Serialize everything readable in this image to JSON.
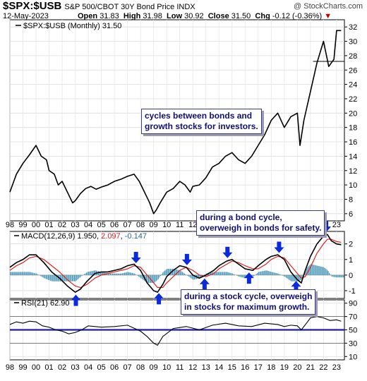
{
  "header": {
    "symbol": "$SPX:$USB",
    "description": "S&P 500/CBOT 30Y Bond Price INDX",
    "brand": "@ StockCharts.com",
    "date": "12-May-2023",
    "open_label": "Open",
    "open": "31.83",
    "high_label": "High",
    "high": "31.98",
    "low_label": "Low",
    "low": "30.92",
    "close_label": "Close",
    "close": "31.50",
    "chg_label": "Chg",
    "chg": "-0.12 (-0.36%)",
    "chg_marker": "▼"
  },
  "colors": {
    "price": "#000000",
    "signal": "#e02020",
    "hist": "#4a98b8",
    "arrow": "#0a2adc",
    "rsi_band": "#1a1ab0",
    "annot_text": "#101070"
  },
  "annotations": {
    "cycles": [
      "cycles between bonds and",
      "growth stocks for investors."
    ],
    "bond": [
      "during a bond cycle,",
      "overweigh in bonds for safety."
    ],
    "stock": [
      "during a stock cycle, overweigh",
      "in stocks for maximum growth."
    ]
  },
  "chart_data": [
    {
      "type": "line",
      "legend": "$SPX:$USB (Monthly) 31.50",
      "x_ticks": [
        "98",
        "99",
        "00",
        "01",
        "02",
        "03",
        "04",
        "05",
        "06",
        "07",
        "08",
        "09",
        "10",
        "11",
        "12",
        "13",
        "14",
        "15",
        "16",
        "17",
        "18",
        "19",
        "20",
        "21",
        "22",
        "23"
      ],
      "y_ticks": [
        6,
        8,
        10,
        12,
        14,
        16,
        18,
        20,
        22,
        24,
        26,
        28,
        30,
        32
      ],
      "ylim": [
        5,
        33
      ],
      "x": [
        1998.0,
        1998.5,
        1999.0,
        1999.5,
        2000.0,
        2000.4,
        2000.8,
        2001.0,
        2001.4,
        2001.7,
        2002.0,
        2002.4,
        2002.8,
        2003.0,
        2003.4,
        2003.8,
        2004.2,
        2004.6,
        2005.0,
        2005.5,
        2006.0,
        2006.5,
        2007.0,
        2007.5,
        2007.9,
        2008.3,
        2008.7,
        2009.0,
        2009.2,
        2009.5,
        2010.0,
        2010.5,
        2011.0,
        2011.4,
        2011.8,
        2012.0,
        2012.5,
        2013.0,
        2013.5,
        2014.0,
        2014.5,
        2015.0,
        2015.5,
        2016.0,
        2016.5,
        2017.0,
        2017.5,
        2018.0,
        2018.5,
        2019.0,
        2019.5,
        2020.0,
        2020.2,
        2020.5,
        2021.0,
        2021.5,
        2022.0,
        2022.4,
        2022.8,
        2023.0,
        2023.35
      ],
      "values": [
        9.0,
        11.5,
        13.0,
        14.2,
        15.5,
        14.0,
        13.5,
        12.0,
        11.5,
        10.0,
        10.5,
        9.0,
        7.5,
        7.8,
        8.8,
        9.5,
        9.8,
        9.4,
        9.7,
        10.0,
        10.5,
        10.8,
        11.2,
        11.5,
        10.5,
        9.0,
        7.5,
        6.0,
        6.5,
        7.5,
        9.0,
        9.5,
        10.5,
        10.0,
        9.0,
        9.8,
        10.0,
        11.0,
        12.5,
        13.0,
        14.0,
        14.5,
        13.5,
        13.0,
        14.0,
        15.5,
        17.0,
        19.0,
        20.0,
        18.0,
        19.5,
        20.0,
        15.5,
        19.0,
        23.0,
        27.0,
        30.0,
        26.5,
        27.5,
        31.5,
        31.5
      ],
      "reference_level": 27.2
    },
    {
      "type": "line",
      "legend": "MACD(12,26,9)",
      "legend_values": [
        "1.950",
        "2.097",
        "-0.147"
      ],
      "y_ticks": [
        2,
        1,
        0,
        -1
      ],
      "ylim": [
        -1.5,
        2.8
      ],
      "x": [
        1998.0,
        1998.5,
        1999.0,
        1999.5,
        2000.0,
        2000.6,
        2001.2,
        2001.8,
        2002.4,
        2003.0,
        2003.4,
        2003.9,
        2004.5,
        2005.0,
        2005.5,
        2006.0,
        2006.5,
        2007.0,
        2007.5,
        2008.0,
        2008.5,
        2009.0,
        2009.3,
        2009.7,
        2010.0,
        2010.5,
        2011.0,
        2011.5,
        2012.0,
        2012.5,
        2013.0,
        2013.6,
        2014.0,
        2014.6,
        2015.0,
        2015.5,
        2016.0,
        2016.6,
        2017.0,
        2017.6,
        2018.0,
        2018.5,
        2019.0,
        2019.5,
        2020.0,
        2020.3,
        2020.6,
        2021.0,
        2021.5,
        2022.0,
        2022.3,
        2022.6,
        2023.0,
        2023.35
      ],
      "series": [
        {
          "name": "MACD",
          "values": [
            0.5,
            0.8,
            1.0,
            1.3,
            1.3,
            0.8,
            0.2,
            -0.2,
            -0.7,
            -1.1,
            -0.9,
            -0.4,
            0.1,
            0.2,
            0.2,
            0.3,
            0.4,
            0.6,
            0.7,
            0.3,
            -0.5,
            -1.0,
            -1.1,
            -0.6,
            -0.1,
            0.3,
            0.6,
            0.5,
            0.0,
            -0.2,
            0.0,
            0.3,
            0.6,
            0.9,
            1.0,
            0.7,
            0.4,
            0.3,
            0.6,
            1.0,
            1.2,
            1.3,
            1.0,
            0.2,
            -0.3,
            -0.5,
            0.3,
            1.2,
            2.0,
            2.5,
            2.6,
            2.2,
            2.0,
            1.95
          ]
        },
        {
          "name": "Signal",
          "values": [
            0.3,
            0.6,
            0.8,
            1.1,
            1.2,
            1.0,
            0.6,
            0.2,
            -0.3,
            -0.7,
            -0.8,
            -0.6,
            -0.2,
            0.0,
            0.1,
            0.2,
            0.3,
            0.4,
            0.6,
            0.5,
            0.0,
            -0.5,
            -0.8,
            -0.8,
            -0.5,
            -0.1,
            0.3,
            0.5,
            0.3,
            0.0,
            -0.1,
            0.1,
            0.4,
            0.7,
            0.9,
            0.8,
            0.6,
            0.4,
            0.4,
            0.7,
            1.0,
            1.2,
            1.1,
            0.6,
            0.1,
            -0.2,
            -0.1,
            0.5,
            1.4,
            2.0,
            2.3,
            2.3,
            2.15,
            2.1
          ]
        }
      ]
    },
    {
      "type": "line",
      "legend": "RSI(21)",
      "legend_value": "62.90",
      "y_ticks": [
        90,
        70,
        50,
        30,
        10
      ],
      "ylim": [
        5,
        95
      ],
      "band_level": 50,
      "x": [
        1998.0,
        1998.5,
        1999.0,
        1999.5,
        2000.0,
        2000.5,
        2001.0,
        2001.5,
        2002.0,
        2002.5,
        2003.0,
        2003.5,
        2004.0,
        2005.0,
        2006.0,
        2007.0,
        2008.0,
        2008.5,
        2009.0,
        2009.3,
        2009.7,
        2010.5,
        2011.5,
        2012.5,
        2013.5,
        2014.5,
        2015.5,
        2016.5,
        2017.5,
        2018.5,
        2019.0,
        2019.5,
        2020.0,
        2020.3,
        2020.7,
        2021.0,
        2021.5,
        2022.0,
        2022.5,
        2023.0,
        2023.35
      ],
      "values": [
        58,
        62,
        60,
        63,
        62,
        56,
        54,
        50,
        48,
        44,
        46,
        50,
        56,
        54,
        55,
        57,
        48,
        40,
        30,
        27,
        40,
        52,
        55,
        50,
        57,
        60,
        56,
        55,
        60,
        58,
        55,
        57,
        56,
        50,
        60,
        68,
        70,
        68,
        64,
        65,
        63
      ]
    }
  ]
}
